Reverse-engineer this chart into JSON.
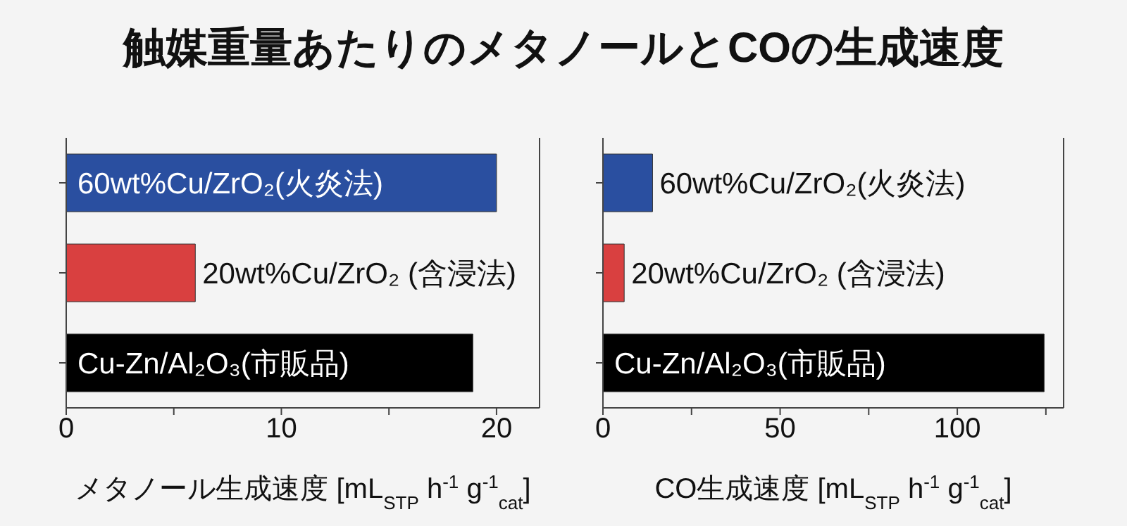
{
  "chart_data": [
    {
      "type": "bar",
      "title": "触媒重量あたりのメタノールとCOの生成速度",
      "orientation": "horizontal",
      "tick_labels": "x",
      "categories": [
        "60wt%Cu/ZrO₂(火炎法)",
        "20wt%Cu/ZrO₂ (含浸法)",
        "Cu-Zn/Al₂O₃(市販品)"
      ],
      "values": [
        20,
        6.0,
        18.9
      ],
      "colors": [
        "#2a4fa0",
        "#d94040",
        "#000000"
      ],
      "xlim": [
        0,
        22
      ],
      "xticks": [
        0,
        {
          "value": 5,
          "label": null
        },
        10,
        {
          "value": 15,
          "label": null
        },
        20
      ],
      "xlabel": "メタノール生成速度 [mL$_{STP}$ h$^{-1}$ g$^{-1}$$_{cat}$]"
    },
    {
      "type": "bar",
      "orientation": "horizontal",
      "tick_labels": "x",
      "categories": [
        "60wt%Cu/ZrO₂(火炎法)",
        "20wt%Cu/ZrO₂ (含浸法)",
        "Cu-Zn/Al₂O₃(市販品)"
      ],
      "values": [
        14,
        6,
        124.5
      ],
      "colors": [
        "#2a4fa0",
        "#d94040",
        "#000000"
      ],
      "xlim": [
        0,
        130
      ],
      "xticks": [
        0,
        {
          "value": 25,
          "label": null
        },
        50,
        {
          "value": 75,
          "label": null
        },
        100,
        {
          "value": 125,
          "label": null
        }
      ],
      "xlabel": "CO生成速度 [mL$_{STP}$ h$^{-1}$ g$^{-1}$$_{cat}$]"
    }
  ]
}
